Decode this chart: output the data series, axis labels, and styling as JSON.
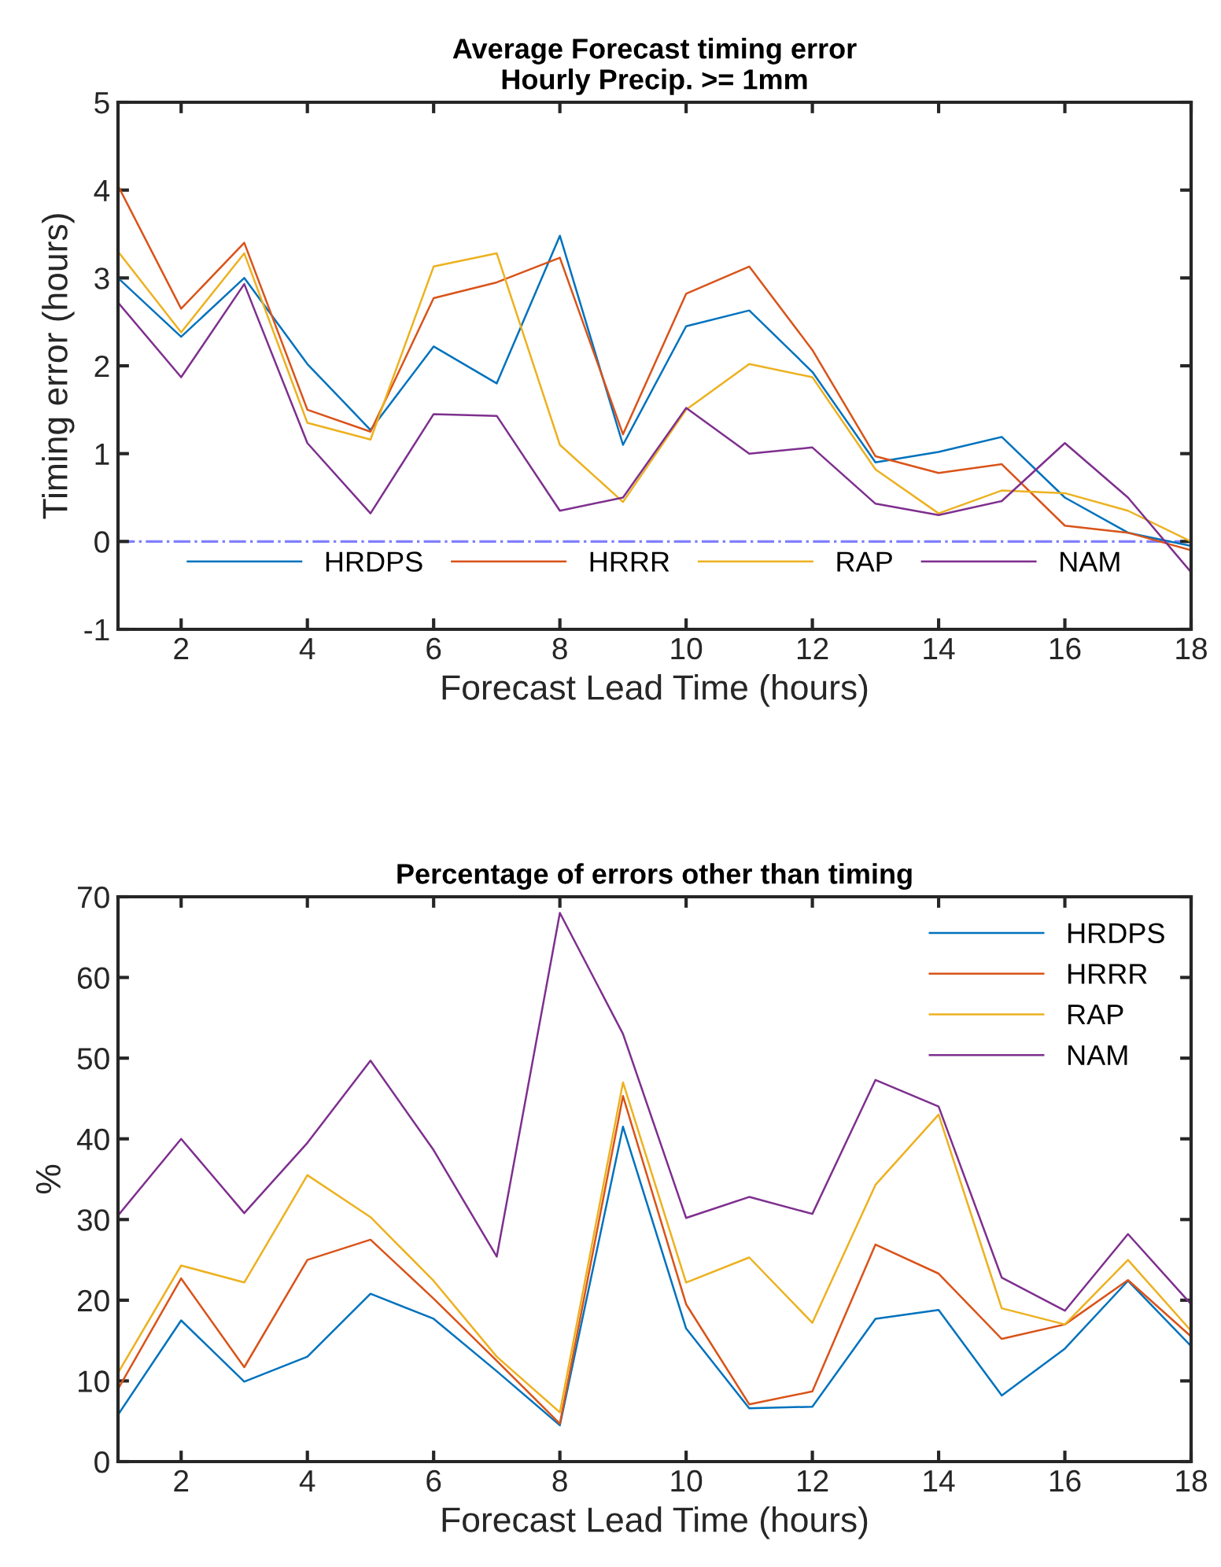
{
  "chart_data": [
    {
      "type": "line",
      "title": "Average Forecast timing error\nHourly Precip. >= 1mm",
      "xlabel": "Forecast Lead Time (hours)",
      "ylabel": "Timing error (hours)",
      "x": [
        1,
        2,
        3,
        4,
        5,
        6,
        7,
        8,
        9,
        10,
        11,
        12,
        13,
        14,
        15,
        16,
        17,
        18
      ],
      "series": [
        {
          "name": "HRDPS",
          "color": "#0072bd",
          "values": [
            3.0,
            2.33,
            3.0,
            2.02,
            1.27,
            2.22,
            1.8,
            3.48,
            1.1,
            2.45,
            2.63,
            1.93,
            0.9,
            1.02,
            1.19,
            0.5,
            0.1,
            -0.05
          ]
        },
        {
          "name": "HRRR",
          "color": "#d95319",
          "values": [
            4.05,
            2.65,
            3.4,
            1.5,
            1.25,
            2.77,
            2.95,
            3.23,
            1.22,
            2.82,
            3.13,
            2.18,
            0.97,
            0.78,
            0.88,
            0.18,
            0.1,
            -0.1
          ]
        },
        {
          "name": "RAP",
          "color": "#edb120",
          "values": [
            3.3,
            2.38,
            3.28,
            1.35,
            1.16,
            3.13,
            3.28,
            1.1,
            0.45,
            1.5,
            2.02,
            1.87,
            0.82,
            0.32,
            0.58,
            0.55,
            0.35,
            0.0
          ]
        },
        {
          "name": "NAM",
          "color": "#7e2f8e",
          "values": [
            2.72,
            1.87,
            2.93,
            1.12,
            0.32,
            1.45,
            1.43,
            0.35,
            0.5,
            1.52,
            1.0,
            1.07,
            0.43,
            0.3,
            0.46,
            1.12,
            0.5,
            -0.35
          ]
        }
      ],
      "ref_lines": [
        {
          "axis": "y",
          "value": 0,
          "color": "#8080ff",
          "line_style": "dashdot"
        }
      ],
      "xlim": [
        1,
        18
      ],
      "xticks": [
        2,
        4,
        6,
        8,
        10,
        12,
        14,
        16,
        18
      ],
      "ylim": [
        -1,
        5
      ],
      "yticks": [
        -1,
        0,
        1,
        2,
        3,
        4,
        5
      ],
      "legend": "bottom",
      "grid": false
    },
    {
      "type": "line",
      "title": "Percentage of errors other than timing",
      "xlabel": "Forecast Lead Time (hours)",
      "ylabel": "%",
      "x": [
        1,
        2,
        3,
        4,
        5,
        6,
        7,
        8,
        9,
        10,
        11,
        12,
        13,
        14,
        15,
        16,
        17,
        18
      ],
      "series": [
        {
          "name": "HRDPS",
          "color": "#0072bd",
          "values": [
            5.8,
            17.5,
            9.9,
            13,
            20.8,
            17.7,
            11.2,
            4.5,
            41.5,
            16.5,
            6.6,
            6.8,
            17.7,
            18.8,
            8.2,
            14,
            22.4,
            14.3
          ]
        },
        {
          "name": "HRRR",
          "color": "#d95319",
          "values": [
            9,
            22.7,
            11.7,
            25,
            27.5,
            20.2,
            12.5,
            4.7,
            45.3,
            19.5,
            7.1,
            8.7,
            26.9,
            23.3,
            15.2,
            17.0,
            22.5,
            15.5
          ]
        },
        {
          "name": "RAP",
          "color": "#edb120",
          "values": [
            11,
            24.3,
            22.2,
            35.5,
            30.3,
            22.4,
            13,
            6.1,
            47,
            22.2,
            25.3,
            17.2,
            34.3,
            43,
            19,
            17.0,
            25,
            16.2
          ]
        },
        {
          "name": "NAM",
          "color": "#7e2f8e",
          "values": [
            30.5,
            40,
            30.8,
            39.5,
            49.7,
            38.6,
            25.4,
            68,
            53,
            30.2,
            32.8,
            30.7,
            47.3,
            44,
            22.8,
            18.7,
            28.2,
            19.5
          ]
        }
      ],
      "xlim": [
        1,
        18
      ],
      "xticks": [
        2,
        4,
        6,
        8,
        10,
        12,
        14,
        16,
        18
      ],
      "ylim": [
        0,
        70
      ],
      "yticks": [
        0,
        10,
        20,
        30,
        40,
        50,
        60,
        70
      ],
      "legend": "top right",
      "grid": false
    }
  ]
}
